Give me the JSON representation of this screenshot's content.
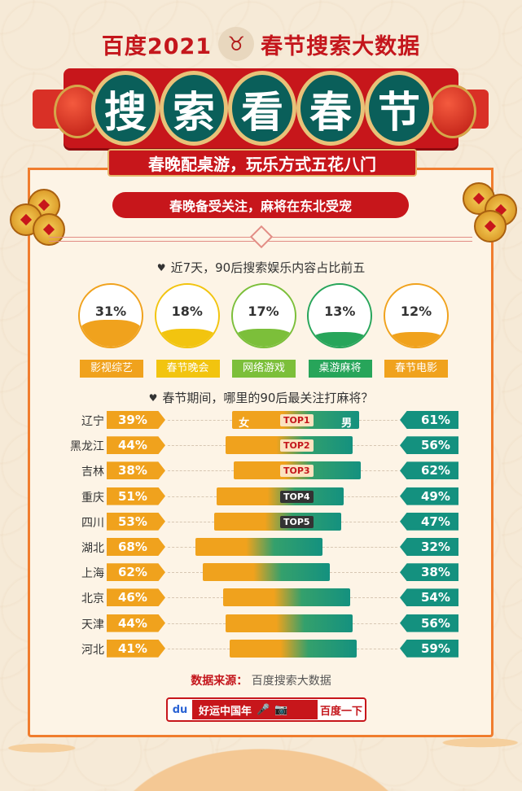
{
  "header": {
    "title_left": "百度2021",
    "title_right": "春节搜索大数据",
    "big_chars": [
      "搜",
      "索",
      "看",
      "春",
      "节"
    ],
    "subtitle": "春晚配桌游，玩乐方式五花八门",
    "section_tag": "春晚备受关注，麻将在东北受宠"
  },
  "colors": {
    "brand_red": "#c7161b",
    "teal": "#0a5f5a",
    "orange": "#f0a21d",
    "green": "#14917f",
    "frame_orange": "#f07d2e"
  },
  "chart_data": [
    {
      "type": "bar",
      "title": "近7天，90后搜索娱乐内容占比前五",
      "categories": [
        "影视综艺",
        "春节晚会",
        "网络游戏",
        "桌游麻将",
        "春节电影"
      ],
      "values": [
        31,
        18,
        17,
        13,
        12
      ],
      "value_labels": [
        "31%",
        "18%",
        "17%",
        "13%",
        "12%"
      ],
      "colors": [
        "#f0a21d",
        "#f2c40f",
        "#7cbf3a",
        "#27a55a",
        "#f0a21d"
      ]
    },
    {
      "type": "bar",
      "title": "春节期间，哪里的90后最关注打麻将？",
      "categories": [
        "辽宁",
        "黑龙江",
        "吉林",
        "重庆",
        "四川",
        "湖北",
        "上海",
        "北京",
        "天津",
        "河北"
      ],
      "series": [
        {
          "name": "女",
          "values": [
            39,
            44,
            38,
            51,
            53,
            68,
            62,
            46,
            44,
            41
          ],
          "labels": [
            "39%",
            "44%",
            "38%",
            "51%",
            "53%",
            "68%",
            "62%",
            "46%",
            "44%",
            "41%"
          ]
        },
        {
          "name": "男",
          "values": [
            61,
            56,
            62,
            49,
            47,
            32,
            38,
            54,
            56,
            59
          ],
          "labels": [
            "61%",
            "56%",
            "62%",
            "49%",
            "47%",
            "32%",
            "38%",
            "54%",
            "56%",
            "59%"
          ]
        }
      ],
      "top_labels": [
        "TOP1",
        "TOP2",
        "TOP3",
        "TOP4",
        "TOP5"
      ]
    }
  ],
  "footer": {
    "source_key": "数据来源：",
    "source_value": "百度搜索大数据",
    "search_text": "好运中国年",
    "search_button": "百度一下",
    "logo_text": "du"
  }
}
